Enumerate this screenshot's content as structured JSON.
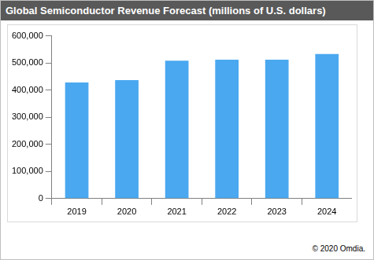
{
  "chart_data": {
    "type": "bar",
    "title": "Global Semiconductor Revenue Forecast (millions of U.S. dollars)",
    "categories": [
      "2019",
      "2020",
      "2021",
      "2022",
      "2023",
      "2024"
    ],
    "values": [
      428000,
      437000,
      508000,
      512000,
      512000,
      533000
    ],
    "color": "#4aa8f0",
    "ylim": [
      0,
      600000
    ],
    "yticks": [
      0,
      {
        "value": 100000,
        "label": "100,000"
      },
      {
        "value": 200000,
        "label": "200,000"
      },
      {
        "value": 300000,
        "label": "300,000"
      },
      {
        "value": 400000,
        "label": "400,000"
      },
      {
        "value": 500000,
        "label": "500,000"
      },
      {
        "value": 600000,
        "label": "600,000"
      }
    ],
    "grid": false,
    "annotations": [
      "© 2020 Omdia."
    ]
  }
}
